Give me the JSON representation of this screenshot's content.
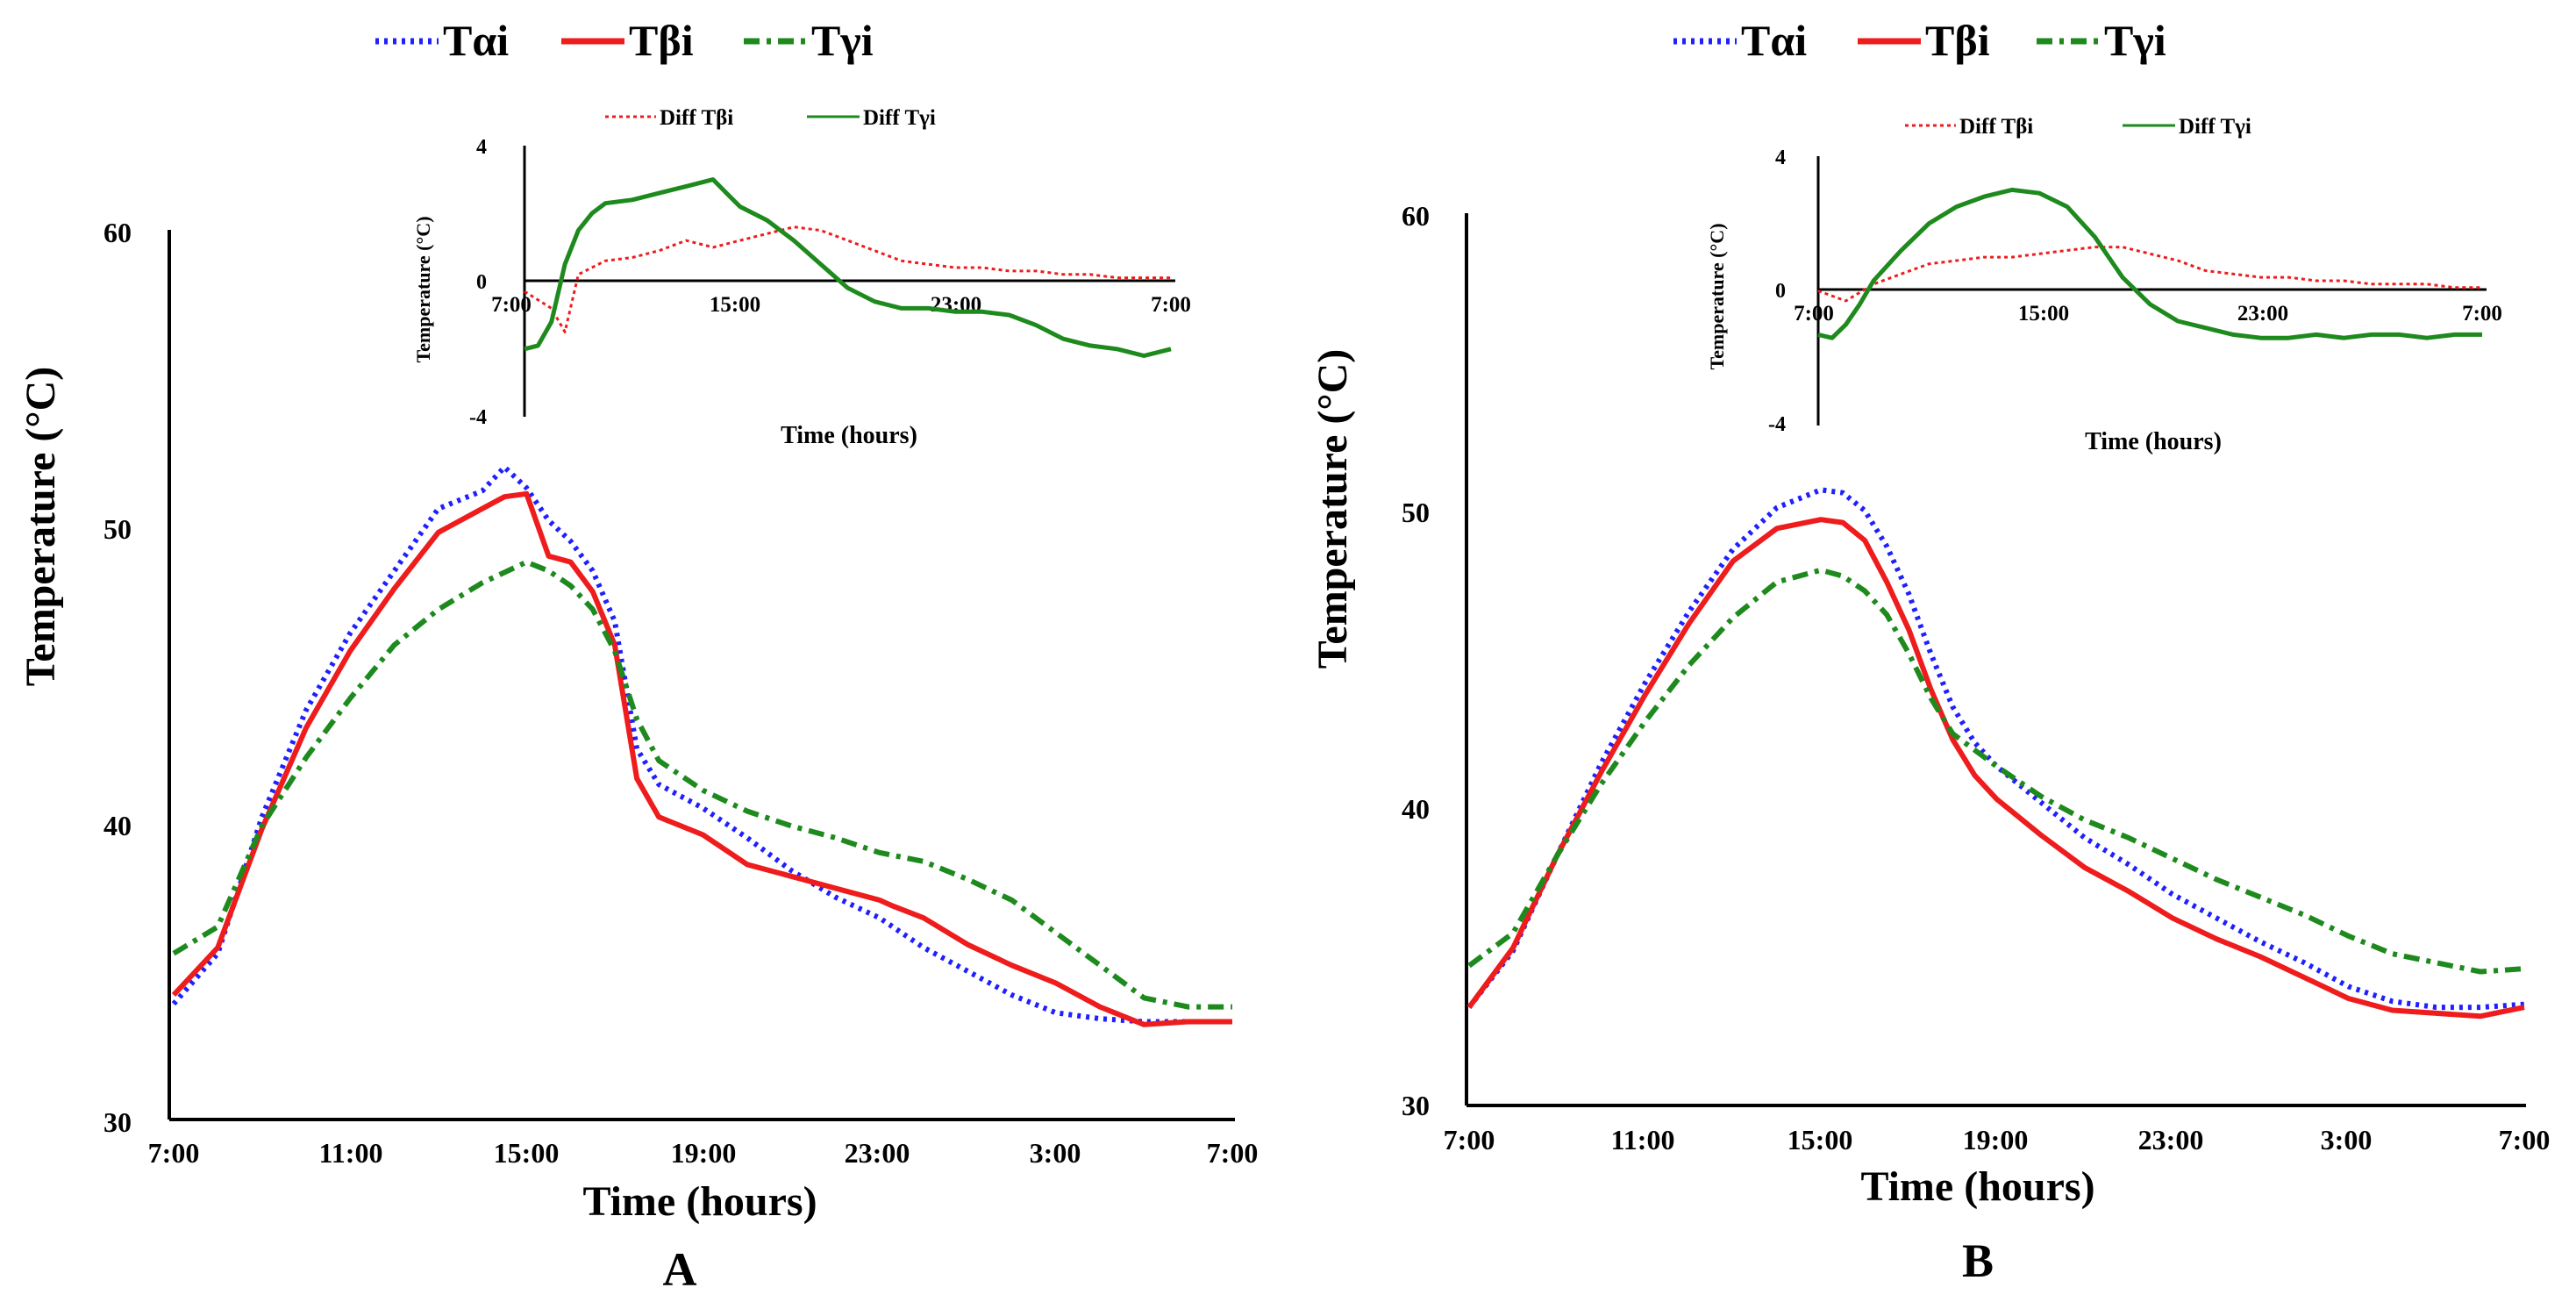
{
  "chart_data": [
    {
      "panel": "A",
      "type": "line",
      "title": "",
      "xlabel": "Time (hours)",
      "ylabel": "Temperature (°C)",
      "x_ticks": [
        "7:00",
        "11:00",
        "15:00",
        "19:00",
        "23:00",
        "3:00",
        "7:00"
      ],
      "y_ticks": [
        "30",
        "40",
        "50",
        "60"
      ],
      "ylim": [
        30,
        60
      ],
      "xlim_hours": [
        0,
        24
      ],
      "legend": [
        "Tαi",
        "Tβi",
        "Tγi"
      ],
      "colors": {
        "Tαi": "#1f1fff",
        "Tβi": "#ee1c1c",
        "Tγi": "#1e8a1e"
      },
      "series": [
        {
          "name": "Tαi",
          "x": [
            0,
            1,
            2,
            3,
            4,
            5,
            6,
            7,
            7.5,
            8,
            8.5,
            9,
            9.5,
            10,
            10.5,
            11,
            11.5,
            12,
            13,
            14,
            15,
            16,
            17,
            18,
            19,
            20,
            21,
            22,
            23,
            24
          ],
          "values": [
            33.9,
            35.6,
            40.2,
            43.8,
            46.4,
            48.5,
            50.6,
            51.2,
            52.0,
            51.3,
            50.2,
            49.5,
            48.5,
            46.8,
            42.5,
            41.3,
            40.9,
            40.5,
            39.5,
            38.4,
            37.5,
            36.8,
            35.8,
            35.0,
            34.2,
            33.6,
            33.4,
            33.3,
            33.3,
            33.3
          ]
        },
        {
          "name": "Tβi",
          "x": [
            0,
            1,
            2,
            3,
            4,
            5,
            6,
            7,
            7.5,
            8,
            8.5,
            9,
            9.5,
            10,
            10.5,
            11,
            11.5,
            12,
            13,
            14,
            15,
            16,
            16.3,
            17,
            18,
            19,
            20,
            21,
            22,
            23,
            24
          ],
          "values": [
            34.2,
            35.8,
            39.8,
            43.2,
            45.8,
            47.9,
            49.8,
            50.6,
            51.0,
            51.1,
            49.0,
            48.8,
            47.8,
            46.0,
            41.5,
            40.2,
            39.9,
            39.6,
            38.6,
            38.2,
            37.8,
            37.4,
            37.2,
            36.8,
            35.9,
            35.2,
            34.6,
            33.8,
            33.2,
            33.3,
            33.3
          ]
        },
        {
          "name": "Tγi",
          "x": [
            0,
            1,
            2,
            3,
            4,
            5,
            6,
            7,
            8,
            8.5,
            9,
            9.5,
            10,
            10.5,
            11,
            12,
            13,
            14,
            15,
            16,
            17,
            18,
            19,
            20,
            21,
            22,
            23,
            24
          ],
          "values": [
            35.6,
            36.5,
            39.9,
            42.2,
            44.2,
            46.0,
            47.2,
            48.1,
            48.8,
            48.5,
            48.0,
            47.2,
            45.8,
            43.5,
            42.1,
            41.1,
            40.4,
            39.9,
            39.5,
            39.0,
            38.7,
            38.1,
            37.4,
            36.3,
            35.2,
            34.1,
            33.8,
            33.8
          ]
        }
      ],
      "inset": {
        "type": "line",
        "xlabel": "Time (hours)",
        "ylabel": "Temperature (°C)",
        "x_ticks": [
          "7:00",
          "15:00",
          "23:00",
          "7:00"
        ],
        "y_ticks": [
          "4",
          "0",
          "-4"
        ],
        "ylim": [
          -4,
          4
        ],
        "legend": [
          "Diff Tβi",
          "Diff Tγi"
        ],
        "series": [
          {
            "name": "Diff Tβi",
            "x": [
              0,
              1,
              1.5,
              2,
              3,
              4,
              5,
              6,
              7,
              8,
              9,
              10,
              11,
              12,
              13,
              14,
              15,
              16,
              17,
              18,
              19,
              20,
              21,
              22,
              23,
              24
            ],
            "values": [
              -0.3,
              -0.8,
              -1.5,
              0.2,
              0.6,
              0.7,
              0.9,
              1.2,
              1.0,
              1.2,
              1.4,
              1.6,
              1.5,
              1.2,
              0.9,
              0.6,
              0.5,
              0.4,
              0.4,
              0.3,
              0.3,
              0.2,
              0.2,
              0.1,
              0.1,
              0.1
            ]
          },
          {
            "name": "Diff Tγi",
            "x": [
              0,
              0.5,
              1,
              1.5,
              2,
              2.5,
              3,
              4,
              5,
              6,
              7,
              7.5,
              8,
              9,
              10,
              11,
              12,
              13,
              14,
              15,
              16,
              17,
              18,
              19,
              20,
              21,
              22,
              23,
              24
            ],
            "values": [
              -2.0,
              -1.9,
              -1.2,
              0.5,
              1.5,
              2.0,
              2.3,
              2.4,
              2.6,
              2.8,
              3.0,
              2.6,
              2.2,
              1.8,
              1.2,
              0.5,
              -0.2,
              -0.6,
              -0.8,
              -0.8,
              -0.9,
              -0.9,
              -1.0,
              -1.3,
              -1.7,
              -1.9,
              -2.0,
              -2.2,
              -2.0
            ]
          }
        ]
      }
    },
    {
      "panel": "B",
      "type": "line",
      "title": "",
      "xlabel": "Time (hours)",
      "ylabel": "Temperature (°C)",
      "x_ticks": [
        "7:00",
        "11:00",
        "15:00",
        "19:00",
        "23:00",
        "3:00",
        "7:00"
      ],
      "y_ticks": [
        "30",
        "40",
        "50",
        "60"
      ],
      "ylim": [
        30,
        60
      ],
      "xlim_hours": [
        0,
        24
      ],
      "legend": [
        "Tαi",
        "Tβi",
        "Tγi"
      ],
      "colors": {
        "Tαi": "#1f1fff",
        "Tβi": "#ee1c1c",
        "Tγi": "#1e8a1e"
      },
      "series": [
        {
          "name": "Tαi",
          "x": [
            0,
            1,
            2,
            3,
            4,
            5,
            6,
            7,
            8,
            8.5,
            9,
            9.5,
            10,
            10.5,
            11,
            11.5,
            12,
            13,
            14,
            15,
            16,
            17,
            18,
            19,
            20,
            21,
            22,
            23,
            24
          ],
          "values": [
            33.3,
            35.2,
            38.4,
            41.5,
            44.2,
            46.6,
            48.7,
            50.1,
            50.7,
            50.6,
            50.0,
            48.8,
            47.2,
            45.2,
            43.4,
            42.2,
            41.4,
            40.2,
            39.0,
            38.1,
            37.1,
            36.3,
            35.5,
            34.8,
            34.0,
            33.5,
            33.3,
            33.3,
            33.4
          ]
        },
        {
          "name": "Tβi",
          "x": [
            0,
            1,
            2,
            3,
            4,
            5,
            6,
            7,
            8,
            8.5,
            9,
            9.5,
            10,
            10.5,
            11,
            11.5,
            12,
            13,
            14,
            15,
            16,
            17,
            18,
            19,
            20,
            21,
            22,
            23,
            24
          ],
          "values": [
            33.3,
            35.3,
            38.4,
            41.2,
            43.8,
            46.2,
            48.3,
            49.4,
            49.7,
            49.6,
            49.0,
            47.6,
            46.0,
            44.0,
            42.3,
            41.1,
            40.3,
            39.1,
            38.0,
            37.2,
            36.3,
            35.6,
            35.0,
            34.3,
            33.6,
            33.2,
            33.1,
            33.0,
            33.3
          ]
        },
        {
          "name": "Tγi",
          "x": [
            0,
            1,
            2,
            3,
            4,
            5,
            6,
            7,
            8,
            8.5,
            9,
            9.5,
            10,
            10.5,
            11,
            12,
            13,
            14,
            15,
            16,
            17,
            18,
            19,
            20,
            21,
            22,
            23,
            24
          ],
          "values": [
            34.7,
            35.8,
            38.4,
            40.8,
            42.9,
            44.8,
            46.4,
            47.6,
            48.0,
            47.8,
            47.3,
            46.5,
            45.2,
            43.7,
            42.5,
            41.4,
            40.4,
            39.6,
            39.0,
            38.3,
            37.6,
            37.0,
            36.4,
            35.7,
            35.1,
            34.8,
            34.5,
            34.6
          ]
        }
      ],
      "inset": {
        "type": "line",
        "xlabel": "Time (hours)",
        "ylabel": "Temperature (°C)",
        "x_ticks": [
          "7:00",
          "15:00",
          "23:00",
          "7:00"
        ],
        "y_ticks": [
          "4",
          "0",
          "-4"
        ],
        "ylim": [
          -4,
          4
        ],
        "legend": [
          "Diff Tβi",
          "Diff Tγi"
        ],
        "series": [
          {
            "name": "Diff Tβi",
            "x": [
              0,
              1,
              2,
              3,
              4,
              5,
              6,
              7,
              8,
              9,
              10,
              11,
              12,
              13,
              14,
              15,
              16,
              17,
              18,
              19,
              20,
              21,
              22,
              23,
              24
            ],
            "values": [
              0.0,
              -0.3,
              0.2,
              0.5,
              0.8,
              0.9,
              1.0,
              1.0,
              1.1,
              1.2,
              1.3,
              1.3,
              1.1,
              0.9,
              0.6,
              0.5,
              0.4,
              0.4,
              0.3,
              0.3,
              0.2,
              0.2,
              0.2,
              0.1,
              0.1
            ]
          },
          {
            "name": "Diff Tγi",
            "x": [
              0,
              0.5,
              1,
              1.5,
              2,
              3,
              4,
              5,
              6,
              7,
              8,
              9,
              10,
              11,
              12,
              13,
              14,
              15,
              16,
              17,
              18,
              19,
              20,
              21,
              22,
              23,
              24
            ],
            "values": [
              -1.3,
              -1.4,
              -1.0,
              -0.4,
              0.3,
              1.2,
              2.0,
              2.5,
              2.8,
              3.0,
              2.9,
              2.5,
              1.6,
              0.4,
              -0.4,
              -0.9,
              -1.1,
              -1.3,
              -1.4,
              -1.4,
              -1.3,
              -1.4,
              -1.3,
              -1.3,
              -1.4,
              -1.3,
              -1.3
            ]
          }
        ]
      }
    }
  ],
  "panel_labels": [
    "A",
    "B"
  ]
}
